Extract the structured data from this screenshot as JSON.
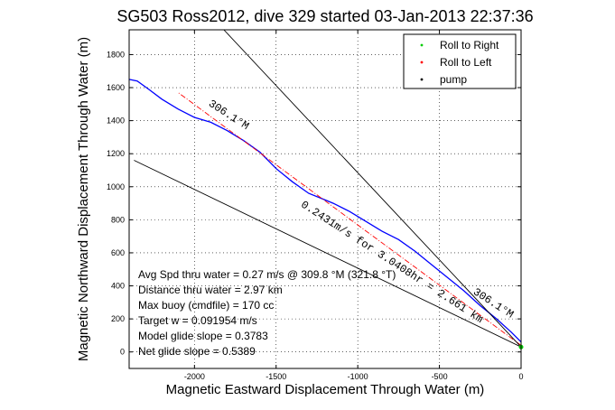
{
  "chart_data": {
    "type": "line",
    "title": "SG503 Ross2012, dive 329 started 03-Jan-2013 22:37:36",
    "xlabel": "Magnetic Eastward Displacement Through Water (m)",
    "ylabel": "Magnetic Northward Displacement Through Water (m)",
    "xlim": [
      -2400,
      0
    ],
    "ylim": [
      -100,
      1950
    ],
    "xticks": [
      -2000,
      -1500,
      -1000,
      -500,
      0
    ],
    "yticks": [
      0,
      200,
      400,
      600,
      800,
      1000,
      1200,
      1400,
      1600,
      1800
    ],
    "grid": true,
    "legend_position": "top-right",
    "legend": [
      {
        "label": "Roll to Right",
        "color": "#00cc00",
        "marker": "dot"
      },
      {
        "label": "Roll to Left",
        "color": "#ff0000",
        "marker": "dot"
      },
      {
        "label": "pump",
        "color": "#000000",
        "marker": "dot"
      }
    ],
    "series": [
      {
        "color": "#0000ff",
        "x": [
          0,
          -60,
          -150,
          -250,
          -350,
          -450,
          -550,
          -650,
          -750,
          -850,
          -950,
          -1050,
          -1150,
          -1200,
          -1300,
          -1400,
          -1500,
          -1600,
          -1700,
          -1800,
          -1900,
          -2000,
          -2100,
          -2200,
          -2280,
          -2350,
          -2400
        ],
        "y": [
          60,
          120,
          200,
          280,
          370,
          450,
          530,
          610,
          680,
          730,
          790,
          850,
          900,
          920,
          960,
          1030,
          1110,
          1210,
          1280,
          1340,
          1390,
          1420,
          1470,
          1530,
          1590,
          1640,
          1650
        ]
      },
      {
        "style": "dashdot",
        "color": "#ff0000",
        "x": [
          0,
          -2100
        ],
        "y": [
          40,
          1570
        ]
      },
      {
        "style": "solid",
        "color": "#000000",
        "x": [
          0,
          -1820
        ],
        "y": [
          30,
          1950
        ]
      },
      {
        "style": "solid",
        "color": "#000000",
        "x": [
          0,
          -2370
        ],
        "y": [
          30,
          1160
        ]
      }
    ],
    "annotations": [
      "Avg Spd thru water =  0.27 m/s @ 309.8  °M (321.8 °T)",
      "Distance thru water =  2.97 km",
      "Max buoy (cmdfile) = 170 cc",
      "Target w = 0.091954 m/s",
      "Model glide slope = 0.3783",
      "Net glide slope = 0.5389"
    ],
    "line_annotations": [
      {
        "text": "306.1°M",
        "x": -1800,
        "y": 1420,
        "angle": 33
      },
      {
        "text": "0.2431m/s for 3.0408hr = 2.661 km",
        "x": -800,
        "y": 530,
        "angle": 33
      },
      {
        "text": "306.1°M",
        "x": -180,
        "y": 280,
        "angle": 33
      }
    ]
  }
}
